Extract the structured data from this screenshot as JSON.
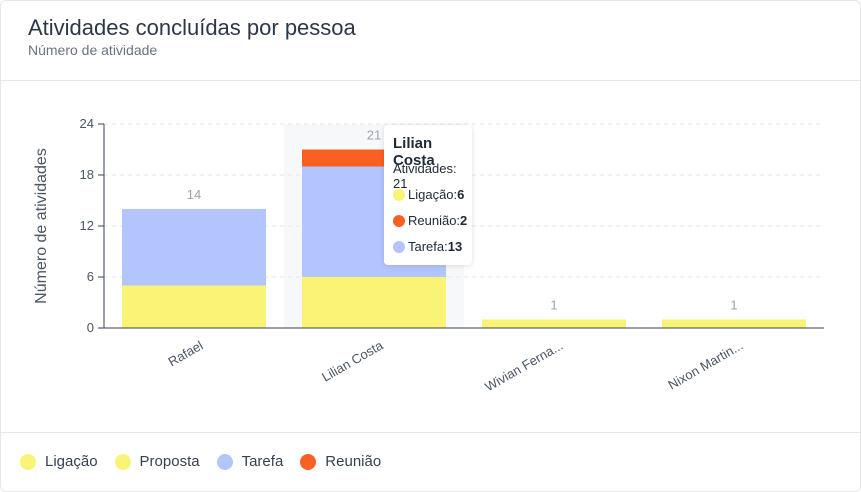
{
  "header": {
    "title": "Atividades concluídas por pessoa",
    "subtitle": "Número de atividade"
  },
  "colors": {
    "ligacao": "#faf476",
    "proposta": "#faf476",
    "tarefa": "#b3c5fd",
    "reuniao": "#f86024",
    "hover_band": "#f7f8fa",
    "axis": "#374151",
    "grid": "#e5e7eb"
  },
  "chart_data": {
    "type": "bar",
    "stacked": true,
    "categories": [
      "Rafael",
      "Lilian Costa",
      "Wivian Ferna...",
      "Nixon Martin..."
    ],
    "series": [
      {
        "name": "Ligação",
        "values": [
          5,
          6,
          1,
          1
        ],
        "color": "#faf476"
      },
      {
        "name": "Proposta",
        "values": [
          0,
          0,
          0,
          0
        ],
        "color": "#faf476"
      },
      {
        "name": "Tarefa",
        "values": [
          9,
          13,
          0,
          0
        ],
        "color": "#b3c5fd"
      },
      {
        "name": "Reunião",
        "values": [
          0,
          2,
          0,
          0
        ],
        "color": "#f86024"
      }
    ],
    "totals": [
      14,
      21,
      1,
      1
    ],
    "ylabel": "Número de atividades",
    "ylim": [
      0,
      24
    ],
    "yticks": [
      0,
      6,
      12,
      18,
      24
    ],
    "grid": true,
    "legend_position": "bottom-left",
    "highlighted_category": "Lilian Costa"
  },
  "tooltip": {
    "title": "Lilian Costa",
    "total": "Atividades: 21",
    "rows": [
      {
        "label": "Ligação:",
        "value": "6",
        "color": "#faf476"
      },
      {
        "label": "Reunião:",
        "value": "2",
        "color": "#f86024"
      },
      {
        "label": "Tarefa:",
        "value": "13",
        "color": "#b3c5fd"
      }
    ]
  },
  "legend": [
    {
      "label": "Ligação",
      "color": "#faf476"
    },
    {
      "label": "Proposta",
      "color": "#faf476"
    },
    {
      "label": "Tarefa",
      "color": "#b3c5fd"
    },
    {
      "label": "Reunião",
      "color": "#f86024"
    }
  ]
}
